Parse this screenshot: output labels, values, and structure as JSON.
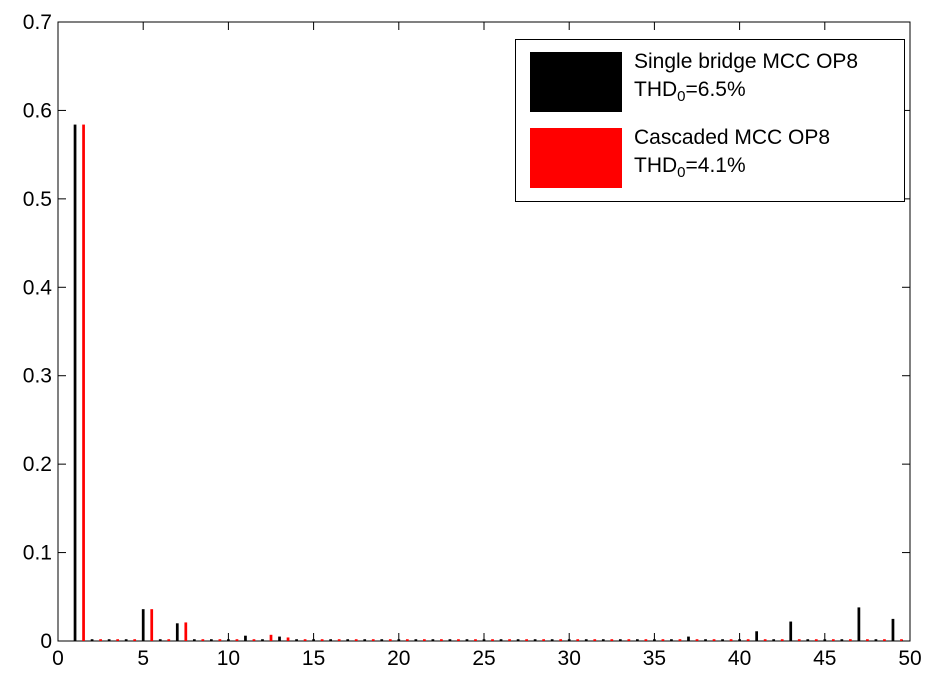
{
  "chart_data": {
    "type": "bar",
    "title": "",
    "xlabel": "",
    "ylabel": "",
    "xlim": [
      0,
      50
    ],
    "ylim": [
      0,
      0.7
    ],
    "x_ticks": [
      "0",
      "5",
      "10",
      "15",
      "20",
      "25",
      "30",
      "35",
      "40",
      "45",
      "50"
    ],
    "y_ticks": [
      "0",
      "0.1",
      "0.2",
      "0.3",
      "0.4",
      "0.5",
      "0.6",
      "0.7"
    ],
    "grid": false,
    "legend_position": "top-right",
    "x": [
      1,
      2,
      3,
      4,
      5,
      6,
      7,
      8,
      9,
      10,
      11,
      12,
      13,
      14,
      15,
      16,
      17,
      18,
      19,
      20,
      21,
      22,
      23,
      24,
      25,
      26,
      27,
      28,
      29,
      30,
      31,
      32,
      33,
      34,
      35,
      36,
      37,
      38,
      39,
      40,
      41,
      42,
      43,
      44,
      45,
      46,
      47,
      48,
      49
    ],
    "series": [
      {
        "legend_line1": "Single bridge MCC OP8",
        "legend_thd_base": "THD",
        "legend_thd_sub": "0",
        "legend_thd_value": "=6.5%",
        "color": "#000000",
        "values": [
          0.584,
          0.002,
          0.002,
          0.002,
          0.036,
          0.002,
          0.02,
          0.002,
          0.002,
          0.002,
          0.006,
          0.002,
          0.005,
          0.002,
          0.002,
          0.002,
          0.002,
          0.002,
          0.002,
          0.002,
          0.002,
          0.002,
          0.002,
          0.002,
          0.002,
          0.002,
          0.002,
          0.002,
          0.002,
          0.002,
          0.002,
          0.002,
          0.002,
          0.002,
          0.002,
          0.002,
          0.005,
          0.002,
          0.002,
          0.002,
          0.011,
          0.002,
          0.022,
          0.002,
          0.002,
          0.002,
          0.038,
          0.002,
          0.025
        ]
      },
      {
        "legend_line1": "Cascaded MCC OP8",
        "legend_thd_base": "THD",
        "legend_thd_sub": "0",
        "legend_thd_value": "=4.1%",
        "color": "#ff0000",
        "values": [
          0.584,
          0.002,
          0.002,
          0.002,
          0.036,
          0.002,
          0.021,
          0.002,
          0.002,
          0.002,
          0.002,
          0.007,
          0.004,
          0.002,
          0.002,
          0.002,
          0.002,
          0.002,
          0.002,
          0.002,
          0.002,
          0.002,
          0.002,
          0.002,
          0.002,
          0.002,
          0.002,
          0.002,
          0.002,
          0.002,
          0.002,
          0.002,
          0.002,
          0.002,
          0.002,
          0.002,
          0.002,
          0.002,
          0.002,
          0.002,
          0.002,
          0.002,
          0.002,
          0.002,
          0.002,
          0.002,
          0.002,
          0.002,
          0.002
        ]
      }
    ]
  }
}
